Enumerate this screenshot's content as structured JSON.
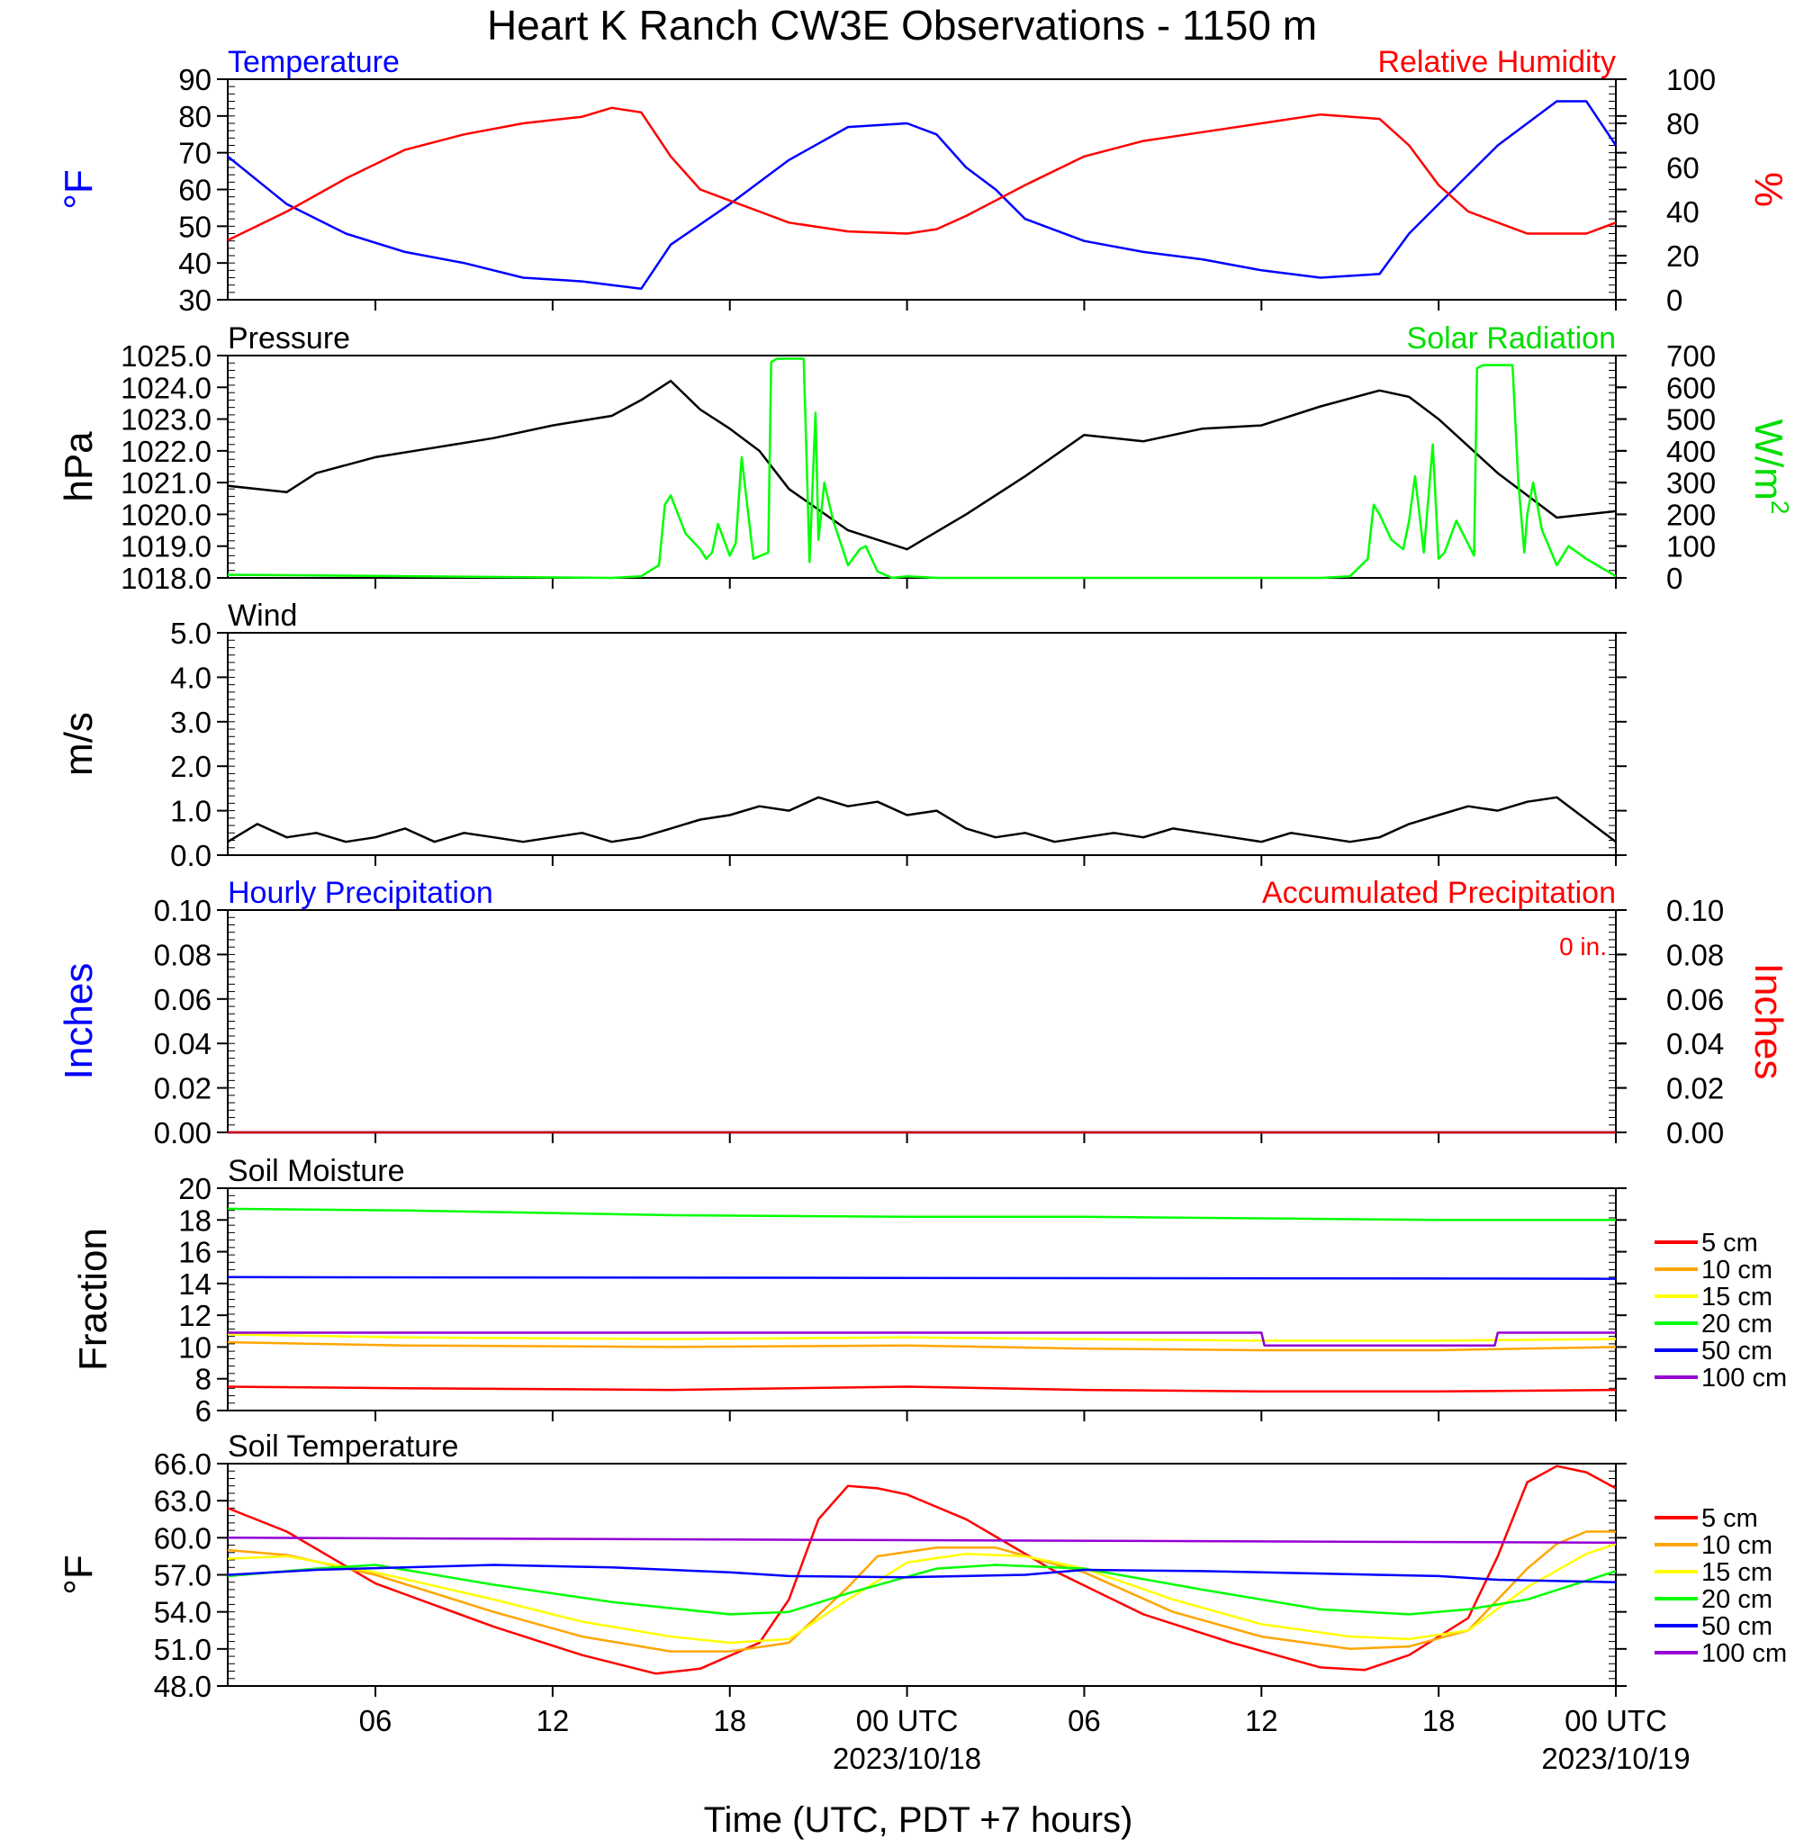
{
  "figure": {
    "title": "Heart K Ranch CW3E Observations - 1150 m",
    "xlabel": "Time (UTC, PDT +7 hours)",
    "x_ticks": [
      {
        "hour": 6,
        "label": "06",
        "date": ""
      },
      {
        "hour": 12,
        "label": "12",
        "date": ""
      },
      {
        "hour": 18,
        "label": "18",
        "date": ""
      },
      {
        "hour": 24,
        "label": "00 UTC",
        "date": "2023/10/18"
      },
      {
        "hour": 30,
        "label": "06",
        "date": ""
      },
      {
        "hour": 36,
        "label": "12",
        "date": ""
      },
      {
        "hour": 42,
        "label": "18",
        "date": ""
      },
      {
        "hour": 48,
        "label": "00 UTC",
        "date": "2023/10/19"
      }
    ],
    "x_range_hours": [
      1,
      48
    ]
  },
  "chart_data": [
    {
      "type": "line",
      "panel": "temperature-humidity",
      "left_title": "Temperature",
      "right_title": "Relative Humidity",
      "ylabel_left": "°F",
      "ylabel_right": "%",
      "ylim_left": [
        30,
        90
      ],
      "ylim_right": [
        0,
        100
      ],
      "yticks_left": [
        "30",
        "40",
        "50",
        "60",
        "70",
        "80",
        "90"
      ],
      "yticks_right": [
        "0",
        "20",
        "40",
        "60",
        "80",
        "100"
      ],
      "series": [
        {
          "axis": "left",
          "color": "#0000ff",
          "x": [
            1,
            3,
            5,
            7,
            9,
            11,
            13,
            15,
            16,
            18,
            20,
            22,
            24,
            25,
            26,
            27,
            28,
            30,
            32,
            34,
            36,
            38,
            40,
            41,
            42,
            44,
            46,
            47,
            48
          ],
          "y": [
            69,
            56,
            48,
            43,
            40,
            36,
            35,
            33,
            45,
            56,
            68,
            77,
            78,
            75,
            66,
            60,
            52,
            46,
            43,
            41,
            38,
            36,
            37,
            48,
            56,
            72,
            84,
            84,
            72
          ]
        },
        {
          "axis": "right",
          "color": "#ff0000",
          "x": [
            1,
            3,
            5,
            7,
            9,
            11,
            13,
            14,
            15,
            16,
            17,
            18,
            19,
            20,
            22,
            24,
            25,
            26,
            27,
            28,
            30,
            32,
            34,
            36,
            38,
            40,
            41,
            42,
            43,
            45,
            47,
            48
          ],
          "y": [
            27,
            40,
            55,
            68,
            75,
            80,
            83,
            87,
            85,
            65,
            50,
            45,
            40,
            35,
            31,
            30,
            32,
            38,
            45,
            52,
            65,
            72,
            76,
            80,
            84,
            82,
            70,
            52,
            40,
            30,
            30,
            35
          ]
        }
      ]
    },
    {
      "type": "line",
      "panel": "pressure-solar",
      "left_title": "Pressure",
      "right_title": "Solar Radiation",
      "ylabel_left": "hPa",
      "ylabel_right": "W/m",
      "ylabel_right_sup": "2",
      "ylim_left": [
        1018,
        1025
      ],
      "ylim_right": [
        0,
        700
      ],
      "yticks_left": [
        "1018.0",
        "1019.0",
        "1020.0",
        "1021.0",
        "1022.0",
        "1023.0",
        "1024.0",
        "1025.0"
      ],
      "yticks_right": [
        "0",
        "100",
        "200",
        "300",
        "400",
        "500",
        "600",
        "700"
      ],
      "series": [
        {
          "axis": "left",
          "color": "#000000",
          "x": [
            1,
            3,
            4,
            6,
            8,
            10,
            12,
            14,
            15,
            16,
            17,
            18,
            19,
            20,
            22,
            24,
            26,
            28,
            30,
            32,
            34,
            36,
            38,
            40,
            41,
            42,
            44,
            46,
            48
          ],
          "y": [
            1020.9,
            1020.7,
            1021.3,
            1021.8,
            1022.1,
            1022.4,
            1022.8,
            1023.1,
            1023.6,
            1024.2,
            1023.3,
            1022.7,
            1022.0,
            1020.8,
            1019.5,
            1018.9,
            1020.0,
            1021.2,
            1022.5,
            1022.3,
            1022.7,
            1022.8,
            1023.4,
            1023.9,
            1023.7,
            1023.0,
            1021.3,
            1019.9,
            1020.1
          ]
        },
        {
          "axis": "right",
          "color": "#00ff00",
          "x": [
            1,
            14,
            15,
            15.6,
            15.8,
            16,
            16.5,
            17,
            17.2,
            17.4,
            17.6,
            18,
            18.2,
            18.4,
            18.8,
            19.3,
            19.4,
            19.6,
            20.5,
            20.7,
            20.9,
            21,
            21.2,
            21.5,
            22,
            22.4,
            22.6,
            23,
            23.5,
            24,
            25,
            38,
            39,
            39.6,
            39.8,
            40,
            40.4,
            40.8,
            41,
            41.2,
            41.5,
            41.8,
            42,
            42.2,
            42.6,
            43.2,
            43.3,
            43.5,
            44.5,
            44.7,
            44.9,
            45,
            45.2,
            45.5,
            46,
            46.4,
            47,
            48
          ],
          "y": [
            10,
            0,
            5,
            40,
            230,
            260,
            140,
            90,
            60,
            80,
            170,
            70,
            110,
            380,
            60,
            80,
            680,
            690,
            690,
            50,
            520,
            120,
            300,
            180,
            40,
            90,
            100,
            20,
            0,
            5,
            0,
            0,
            5,
            60,
            230,
            200,
            120,
            90,
            180,
            320,
            80,
            420,
            60,
            80,
            180,
            70,
            660,
            670,
            670,
            300,
            80,
            200,
            300,
            150,
            40,
            100,
            60,
            5
          ]
        }
      ]
    },
    {
      "type": "line",
      "panel": "wind",
      "left_title": "Wind",
      "ylabel_left": "m/s",
      "ylim_left": [
        0,
        5
      ],
      "yticks_left": [
        "0.0",
        "1.0",
        "2.0",
        "3.0",
        "4.0",
        "5.0"
      ],
      "series": [
        {
          "axis": "left",
          "color": "#000000",
          "x": [
            1,
            2,
            3,
            4,
            5,
            6,
            7,
            8,
            9,
            10,
            11,
            12,
            13,
            14,
            15,
            16,
            17,
            18,
            19,
            20,
            21,
            22,
            23,
            24,
            25,
            26,
            27,
            28,
            29,
            30,
            31,
            32,
            33,
            34,
            35,
            36,
            37,
            38,
            39,
            40,
            41,
            42,
            43,
            44,
            45,
            46,
            47,
            48
          ],
          "y": [
            0.3,
            0.7,
            0.4,
            0.5,
            0.3,
            0.4,
            0.6,
            0.3,
            0.5,
            0.4,
            0.3,
            0.4,
            0.5,
            0.3,
            0.4,
            0.6,
            0.8,
            0.9,
            1.1,
            1.0,
            1.3,
            1.1,
            1.2,
            0.9,
            1.0,
            0.6,
            0.4,
            0.5,
            0.3,
            0.4,
            0.5,
            0.4,
            0.6,
            0.5,
            0.4,
            0.3,
            0.5,
            0.4,
            0.3,
            0.4,
            0.7,
            0.9,
            1.1,
            1.0,
            1.2,
            1.3,
            0.8,
            0.3
          ]
        }
      ]
    },
    {
      "type": "line",
      "panel": "precipitation",
      "left_title": "Hourly Precipitation",
      "right_title": "Accumulated Precipitation",
      "annotation": "0 in.",
      "ylabel_left": "Inches",
      "ylabel_right": "Inches",
      "ylim_left": [
        0,
        0.1
      ],
      "ylim_right": [
        0,
        0.1
      ],
      "yticks_left": [
        "0.00",
        "0.02",
        "0.04",
        "0.06",
        "0.08",
        "0.10"
      ],
      "yticks_right": [
        "0.00",
        "0.02",
        "0.04",
        "0.06",
        "0.08",
        "0.10"
      ],
      "series": [
        {
          "axis": "left",
          "color": "#0000ff",
          "x": [
            1,
            48
          ],
          "y": [
            0,
            0
          ]
        },
        {
          "axis": "right",
          "color": "#cc0000",
          "x": [
            1,
            48
          ],
          "y": [
            0,
            0
          ]
        }
      ]
    },
    {
      "type": "line",
      "panel": "soil-moisture",
      "left_title": "Soil Moisture",
      "ylabel_left": "Fraction",
      "ylim_left": [
        6,
        20
      ],
      "yticks_left": [
        "6",
        "8",
        "10",
        "12",
        "14",
        "16",
        "18",
        "20"
      ],
      "series": [
        {
          "name": "5 cm",
          "color": "#ff0000",
          "x": [
            1,
            7,
            16,
            24,
            30,
            36,
            42,
            48
          ],
          "y": [
            7.5,
            7.4,
            7.3,
            7.5,
            7.3,
            7.2,
            7.2,
            7.3
          ]
        },
        {
          "name": "10 cm",
          "color": "#ffa500",
          "x": [
            1,
            7,
            16,
            24,
            30,
            36,
            42,
            48
          ],
          "y": [
            10.3,
            10.1,
            10.0,
            10.1,
            9.9,
            9.8,
            9.8,
            10.0
          ]
        },
        {
          "name": "15 cm",
          "color": "#ffff00",
          "x": [
            1,
            7,
            16,
            24,
            30,
            36,
            42,
            48
          ],
          "y": [
            10.8,
            10.6,
            10.5,
            10.6,
            10.5,
            10.4,
            10.4,
            10.5
          ]
        },
        {
          "name": "20 cm",
          "color": "#00ff00",
          "x": [
            1,
            7,
            16,
            24,
            30,
            36,
            42,
            48
          ],
          "y": [
            18.7,
            18.6,
            18.3,
            18.2,
            18.2,
            18.1,
            18.0,
            18.0
          ]
        },
        {
          "name": "50 cm",
          "color": "#0000ff",
          "x": [
            1,
            48
          ],
          "y": [
            14.4,
            14.3
          ]
        },
        {
          "name": "100 cm",
          "color": "#9400d3",
          "x": [
            1,
            36,
            36.1,
            43.9,
            44,
            48
          ],
          "y": [
            10.9,
            10.9,
            10.1,
            10.1,
            10.9,
            10.9
          ]
        }
      ]
    },
    {
      "type": "line",
      "panel": "soil-temperature",
      "left_title": "Soil Temperature",
      "ylabel_left": "°F",
      "ylim_left": [
        48,
        66
      ],
      "yticks_left": [
        "48.0",
        "51.0",
        "54.0",
        "57.0",
        "60.0",
        "63.0",
        "66.0"
      ],
      "series": [
        {
          "name": "5 cm",
          "color": "#ff0000",
          "x": [
            1,
            3,
            6,
            10,
            13,
            15.5,
            17,
            19,
            20,
            21,
            22,
            23,
            24,
            26,
            29,
            32,
            35,
            38,
            39.5,
            41,
            43,
            44,
            45,
            46,
            47,
            48
          ],
          "y": [
            62.4,
            60.5,
            56.3,
            52.8,
            50.5,
            49.0,
            49.4,
            51.5,
            55.0,
            61.5,
            64.2,
            64.0,
            63.5,
            61.5,
            57.3,
            53.8,
            51.5,
            49.5,
            49.3,
            50.5,
            53.5,
            58.5,
            64.5,
            65.8,
            65.3,
            64.0
          ]
        },
        {
          "name": "10 cm",
          "color": "#ffa500",
          "x": [
            1,
            3,
            6,
            10,
            13,
            16,
            18,
            20,
            22,
            23,
            25,
            27,
            30,
            33,
            36,
            39,
            41,
            43,
            45,
            46,
            47,
            48
          ],
          "y": [
            59.0,
            58.6,
            57.0,
            54.0,
            52.0,
            50.8,
            50.8,
            51.5,
            56.0,
            58.5,
            59.2,
            59.2,
            57.2,
            54.0,
            52.0,
            51.0,
            51.2,
            52.5,
            57.5,
            59.5,
            60.5,
            60.5
          ]
        },
        {
          "name": "15 cm",
          "color": "#ffff00",
          "x": [
            1,
            3,
            6,
            10,
            13,
            16,
            18,
            20,
            22,
            24,
            26,
            28,
            30,
            33,
            36,
            39,
            41,
            43,
            45,
            47,
            48
          ],
          "y": [
            58.3,
            58.5,
            57.2,
            55.0,
            53.2,
            52.0,
            51.5,
            51.8,
            55.0,
            58.0,
            58.7,
            58.5,
            57.5,
            55.0,
            53.0,
            52.0,
            51.8,
            52.5,
            56.0,
            58.7,
            59.5
          ]
        },
        {
          "name": "20 cm",
          "color": "#00ff00",
          "x": [
            1,
            4,
            6,
            10,
            14,
            18,
            20,
            22,
            25,
            27,
            30,
            34,
            38,
            41,
            43,
            45,
            48
          ],
          "y": [
            56.9,
            57.5,
            57.8,
            56.2,
            54.8,
            53.8,
            54.0,
            55.5,
            57.5,
            57.8,
            57.5,
            55.8,
            54.2,
            53.8,
            54.2,
            55.0,
            57.3
          ]
        },
        {
          "name": "50 cm",
          "color": "#0000ff",
          "x": [
            1,
            4,
            10,
            14,
            18,
            20,
            24,
            28,
            30,
            34,
            38,
            42,
            44,
            48
          ],
          "y": [
            57.0,
            57.4,
            57.8,
            57.6,
            57.2,
            56.9,
            56.8,
            57.0,
            57.4,
            57.3,
            57.1,
            56.9,
            56.6,
            56.4
          ]
        },
        {
          "name": "100 cm",
          "color": "#9400d3",
          "x": [
            1,
            48
          ],
          "y": [
            60.0,
            59.6
          ]
        }
      ]
    }
  ]
}
